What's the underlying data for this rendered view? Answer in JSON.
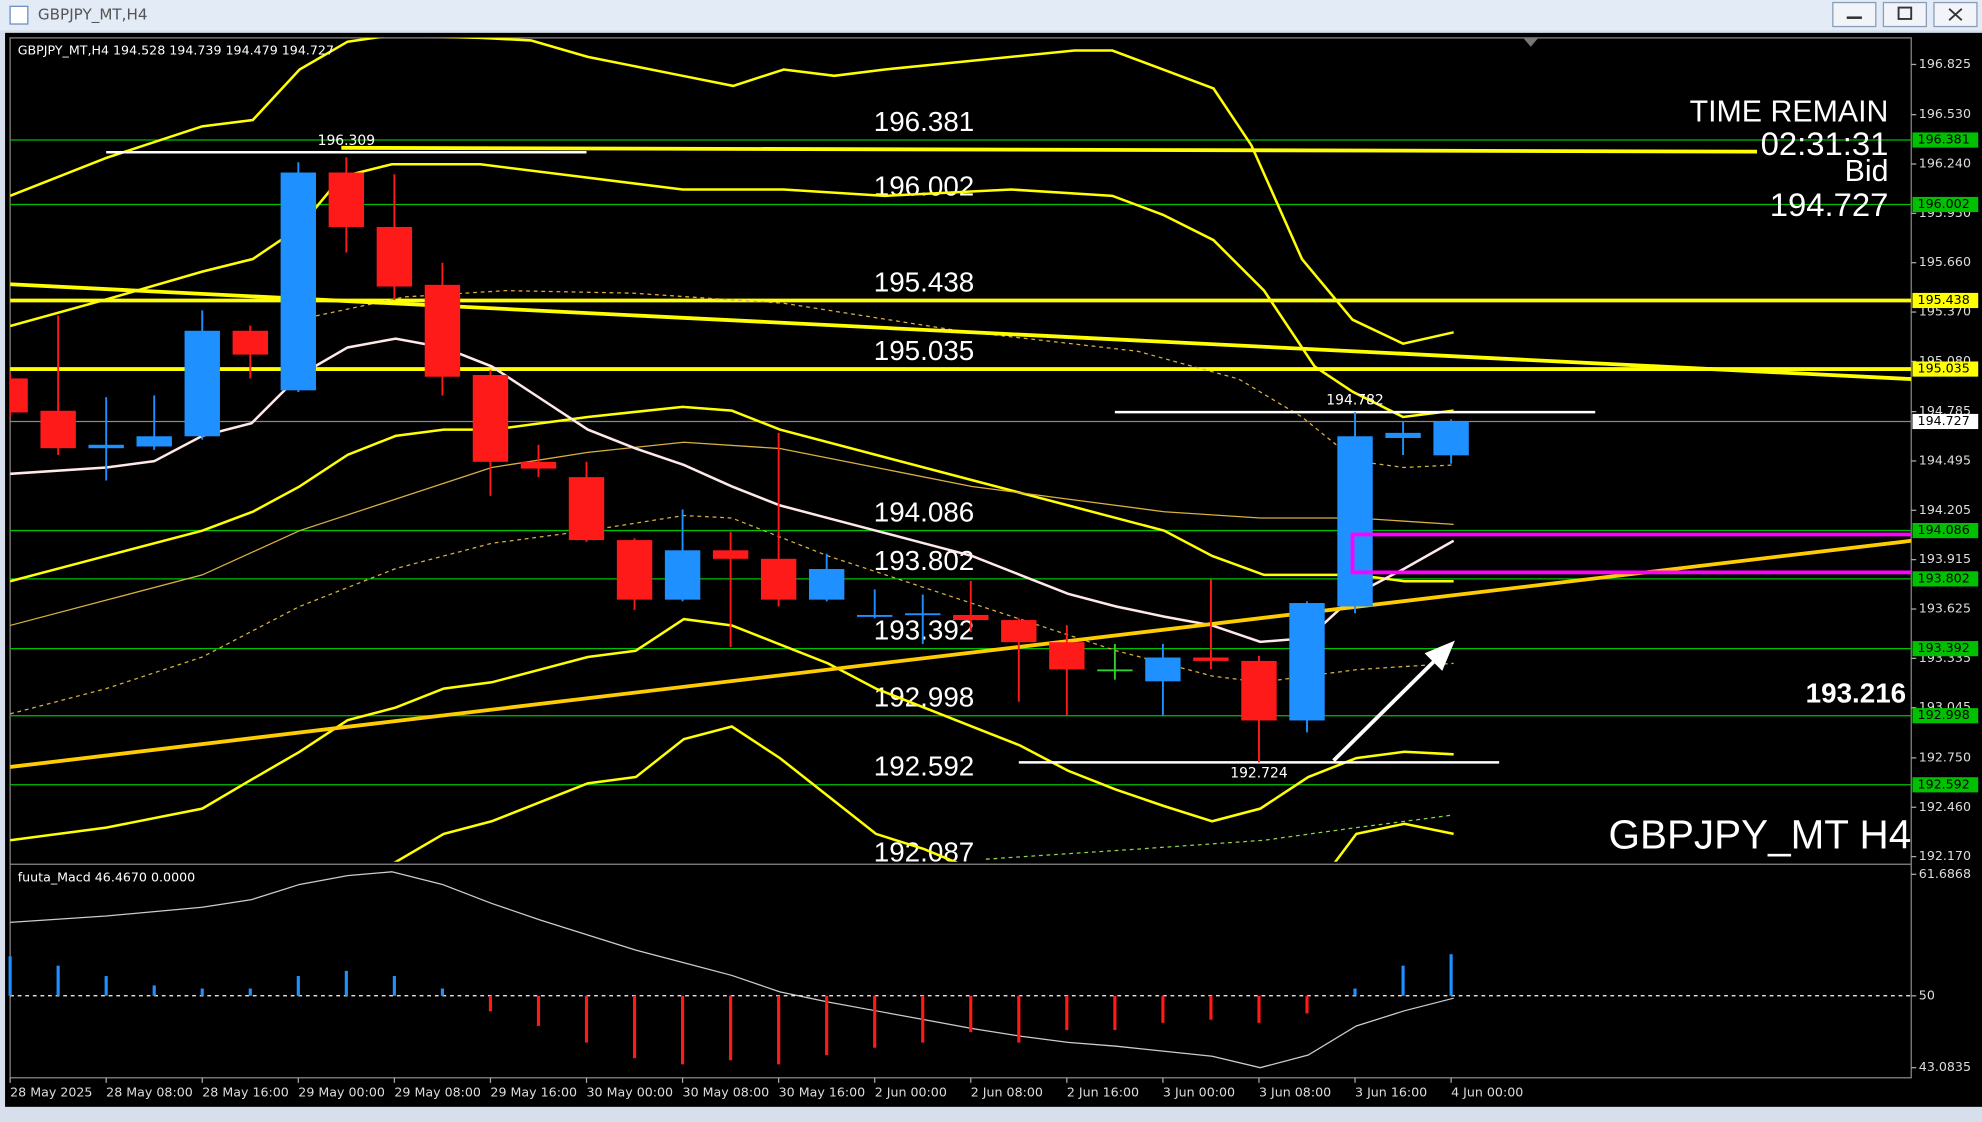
{
  "window": {
    "title": "GBPJPY_MT,H4"
  },
  "chart_data": {
    "type": "candlestick",
    "symbol": "GBPJPY_MT,H4",
    "watermark": "GBPJPY_MT H4",
    "categories": [
      "28 May 2025",
      null,
      "28 May 08:00",
      null,
      "28 May 16:00",
      null,
      "29 May 00:00",
      null,
      "29 May 08:00",
      null,
      "29 May 16:00",
      null,
      "30 May 00:00",
      null,
      "30 May 08:00",
      null,
      "30 May 16:00",
      null,
      "2 Jun 00:00",
      null,
      "2 Jun 08:00",
      null,
      "2 Jun 16:00",
      null,
      "3 Jun 00:00",
      null,
      "3 Jun 08:00",
      null,
      "3 Jun 16:00",
      null,
      "4 Jun 00:00"
    ],
    "open": [
      194.98,
      194.79,
      194.57,
      194.58,
      194.64,
      195.26,
      194.91,
      196.19,
      195.87,
      195.53,
      195.0,
      194.49,
      194.4,
      194.03,
      193.68,
      193.97,
      193.92,
      193.68,
      193.58,
      193.59,
      193.59,
      193.56,
      193.43,
      193.27,
      193.2,
      193.34,
      193.32,
      192.97,
      193.64,
      194.63,
      194.528
    ],
    "high": [
      195.01,
      195.35,
      194.87,
      194.88,
      195.38,
      195.29,
      196.25,
      196.28,
      196.18,
      195.66,
      195.03,
      194.59,
      194.49,
      194.04,
      194.21,
      194.08,
      194.66,
      193.95,
      193.74,
      193.71,
      193.79,
      193.57,
      193.53,
      193.42,
      193.42,
      193.8,
      193.35,
      193.67,
      194.782,
      194.73,
      194.739
    ],
    "low": [
      194.75,
      194.53,
      194.38,
      194.56,
      194.62,
      194.98,
      194.9,
      195.72,
      195.44,
      194.88,
      194.29,
      194.4,
      194.02,
      193.62,
      193.67,
      193.4,
      193.64,
      193.67,
      193.57,
      193.42,
      193.49,
      193.08,
      193.0,
      193.21,
      193.0,
      193.27,
      192.724,
      192.9,
      193.6,
      194.53,
      194.479
    ],
    "close": [
      194.78,
      194.57,
      194.59,
      194.64,
      195.26,
      195.12,
      196.19,
      195.87,
      195.52,
      194.99,
      194.49,
      194.45,
      194.03,
      193.68,
      193.97,
      193.92,
      193.68,
      193.86,
      193.59,
      193.6,
      193.56,
      193.43,
      193.27,
      193.27,
      193.34,
      193.32,
      192.97,
      193.66,
      194.64,
      194.66,
      194.727
    ],
    "up_color": "#1e90ff",
    "down_color": "#ff1a1a",
    "doji_color": "#32cd32",
    "ylim": [
      192.14,
      196.981
    ],
    "yticks": [
      196.825,
      {
        "value": 196.53,
        "label": "196.530"
      },
      {
        "value": 196.24,
        "label": "196.240"
      },
      {
        "value": 195.95,
        "label": "195.950"
      },
      {
        "value": 195.66,
        "label": "195.660"
      },
      {
        "value": 195.37,
        "label": "195.370"
      },
      {
        "value": 195.08,
        "label": "195.080"
      },
      194.785,
      194.495,
      194.205,
      193.915,
      193.625,
      193.335,
      193.045,
      {
        "value": 192.75,
        "label": "192.750"
      },
      {
        "value": 192.46,
        "label": "192.460"
      },
      {
        "value": 192.17,
        "label": "192.170"
      }
    ],
    "levels": [
      {
        "value": 196.381,
        "color": "#00c000"
      },
      {
        "value": 196.002,
        "color": "#00c000"
      },
      {
        "value": 195.438,
        "color": "#ffff00"
      },
      {
        "value": 195.035,
        "color": "#ffff00"
      },
      {
        "value": 194.086,
        "color": "#00c000"
      },
      {
        "value": 193.802,
        "color": "#00c000"
      },
      {
        "value": 193.392,
        "color": "#00c000"
      },
      {
        "value": 192.998,
        "color": "#00c000"
      },
      {
        "value": 192.592,
        "color": "#00c000"
      },
      {
        "value": 192.087,
        "color": "#00c000"
      }
    ],
    "markers": [
      196.309,
      194.782,
      192.724
    ],
    "info": {
      "time_label": "TIME REMAIN",
      "time": "02:31:31",
      "bid_label": "Bid",
      "note": 193.216
    },
    "macd": {
      "label": "fuuta_Macd 46.4670  0.0000",
      "values": [
        53.8,
        52.9,
        51.9,
        51.0,
        50.7,
        50.7,
        51.9,
        52.4,
        51.9,
        50.7,
        48.5,
        47.1,
        45.5,
        44.0,
        43.4,
        43.8,
        43.4,
        44.3,
        45.0,
        45.5,
        46.5,
        45.5,
        46.7,
        46.7,
        47.4,
        47.7,
        47.4,
        48.3,
        50.7,
        52.9,
        54.0
      ],
      "base": 50,
      "ylim": [
        42.111,
        62.416
      ],
      "yticks": [
        61.6868,
        50,
        43.0835
      ]
    }
  }
}
